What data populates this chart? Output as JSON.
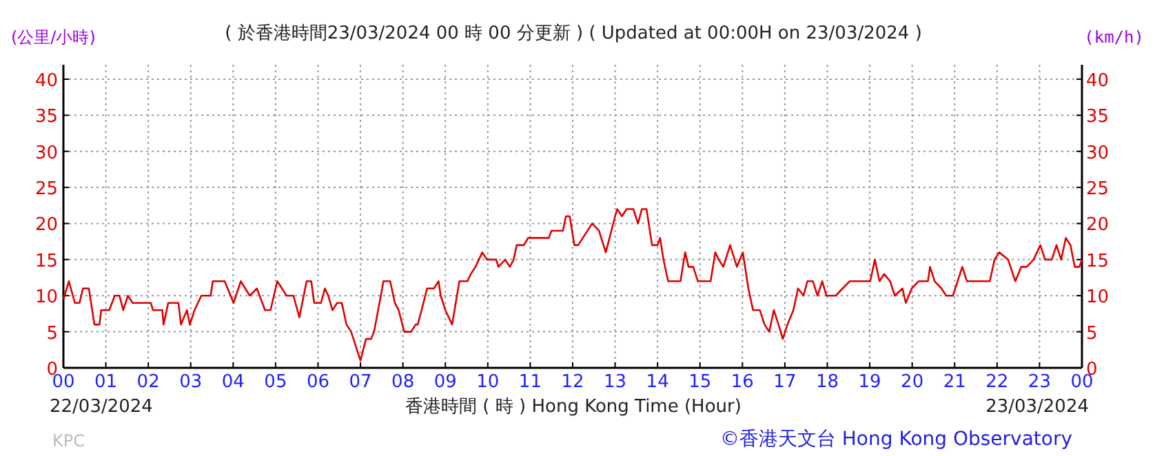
{
  "chart_data": {
    "type": "line",
    "title": "( 於香港時間23/03/2024 00 時 00 分更新 ) ( Updated at 00:00H on 23/03/2024 )",
    "ylabel": "(公里/小時)",
    "y2label": "(km/h)",
    "xlabel": "香港時間 ( 時 ) Hong Kong Time (Hour)",
    "annotations": [
      "22/03/2024",
      "23/03/2024",
      "KPC",
      "©香港天文台 Hong Kong Observatory"
    ],
    "xlim": [
      0,
      24
    ],
    "xticks": [
      {
        "value": 0,
        "label": "00"
      },
      {
        "value": 1,
        "label": "01"
      },
      {
        "value": 2,
        "label": "02"
      },
      {
        "value": 3,
        "label": "03"
      },
      {
        "value": 4,
        "label": "04"
      },
      {
        "value": 5,
        "label": "05"
      },
      {
        "value": 6,
        "label": "06"
      },
      {
        "value": 7,
        "label": "07"
      },
      {
        "value": 8,
        "label": "08"
      },
      {
        "value": 9,
        "label": "09"
      },
      10,
      11,
      12,
      13,
      14,
      15,
      16,
      17,
      18,
      19,
      20,
      21,
      22,
      23,
      {
        "value": 24,
        "label": "00"
      }
    ],
    "ylim": [
      0,
      42
    ],
    "yticks": [
      0,
      5,
      10,
      15,
      20,
      25,
      30,
      35,
      40
    ],
    "y2lim": [
      0,
      42
    ],
    "y2ticks": [
      0,
      5,
      10,
      15,
      20,
      25,
      30,
      35,
      40
    ],
    "grid": true,
    "series": [
      {
        "color": "#e00000",
        "x": [
          0,
          0.13,
          0.27,
          0.38,
          0.46,
          0.6,
          0.73,
          0.85,
          0.89,
          1.08,
          1.21,
          1.32,
          1.41,
          1.52,
          1.63,
          2.06,
          2.11,
          2.33,
          2.36,
          2.47,
          2.71,
          2.77,
          2.91,
          2.98,
          3.09,
          3.25,
          3.47,
          3.52,
          3.8,
          4.01,
          4.18,
          4.39,
          4.56,
          4.75,
          4.88,
          5.04,
          5.15,
          5.26,
          5.42,
          5.56,
          5.73,
          5.84,
          5.91,
          6.07,
          6.16,
          6.24,
          6.34,
          6.45,
          6.56,
          6.67,
          6.78,
          7.0,
          7.13,
          7.25,
          7.32,
          7.48,
          7.54,
          7.7,
          7.81,
          7.9,
          8.03,
          8.19,
          8.3,
          8.35,
          8.44,
          8.57,
          8.73,
          8.84,
          8.89,
          9.0,
          9.16,
          9.33,
          9.52,
          9.6,
          9.71,
          9.87,
          9.98,
          10.2,
          10.25,
          10.41,
          10.52,
          10.61,
          10.68,
          10.85,
          10.95,
          11.06,
          11.23,
          11.44,
          11.5,
          11.66,
          11.77,
          11.84,
          11.93,
          12.04,
          12.13,
          12.46,
          12.62,
          12.78,
          13,
          13.05,
          13.16,
          13.27,
          13.43,
          13.54,
          13.63,
          13.74,
          13.87,
          14.0,
          14.06,
          14.14,
          14.25,
          14.54,
          14.65,
          14.73,
          14.84,
          14.95,
          15.25,
          15.36,
          15.44,
          15.55,
          15.71,
          15.87,
          16.01,
          16.14,
          16.25,
          16.41,
          16.52,
          16.63,
          16.74,
          16.85,
          16.95,
          17.06,
          17.2,
          17.31,
          17.44,
          17.53,
          17.66,
          17.77,
          17.88,
          17.98,
          18.2,
          18.36,
          18.53,
          18.74,
          19.01,
          19.12,
          19.23,
          19.34,
          19.48,
          19.59,
          19.77,
          19.85,
          19.99,
          20.15,
          20.37,
          20.42,
          20.53,
          20.69,
          20.8,
          20.96,
          21.07,
          21.18,
          21.29,
          21.83,
          21.94,
          22.05,
          22.26,
          22.43,
          22.57,
          22.7,
          22.86,
          23.02,
          23.13,
          23.29,
          23.4,
          23.51,
          23.62,
          23.73,
          23.83,
          23.94,
          24
        ],
        "values": [
          9.5,
          12,
          9,
          9,
          11,
          11,
          6,
          6,
          8,
          8,
          10,
          10,
          8,
          10,
          9,
          9,
          8,
          8,
          6,
          9,
          9,
          6,
          8,
          6,
          8,
          10,
          10,
          12,
          12,
          9,
          12,
          10,
          11,
          8,
          8,
          12,
          11,
          10,
          10,
          7,
          12,
          12,
          9,
          9,
          11,
          10,
          8,
          9,
          9,
          6,
          5,
          1,
          4,
          4,
          5,
          10,
          12,
          12,
          9,
          8,
          5,
          5,
          6,
          6,
          8,
          11,
          11,
          12,
          10,
          8,
          6,
          12,
          12,
          13,
          14,
          16,
          15,
          15,
          14,
          15,
          14,
          15,
          17,
          17,
          18,
          18,
          18,
          18,
          19,
          19,
          19,
          21,
          21,
          17,
          17,
          20,
          19,
          16,
          21,
          22,
          21,
          22,
          22,
          20,
          22,
          22,
          17,
          17,
          18,
          15,
          12,
          12,
          16,
          14,
          14,
          12,
          12,
          16,
          15,
          14,
          17,
          14,
          16,
          11,
          8,
          8,
          6,
          5,
          8,
          6,
          4,
          6,
          8,
          11,
          10,
          12,
          12,
          10,
          12,
          10,
          10,
          11,
          12,
          12,
          12,
          15,
          12,
          13,
          12,
          10,
          11,
          9,
          11,
          12,
          12,
          14,
          12,
          11,
          10,
          10,
          12,
          14,
          12,
          12,
          15,
          16,
          15,
          12,
          14,
          14,
          15,
          17,
          15,
          15,
          17,
          15,
          18,
          17,
          14,
          14,
          15
        ]
      }
    ]
  }
}
